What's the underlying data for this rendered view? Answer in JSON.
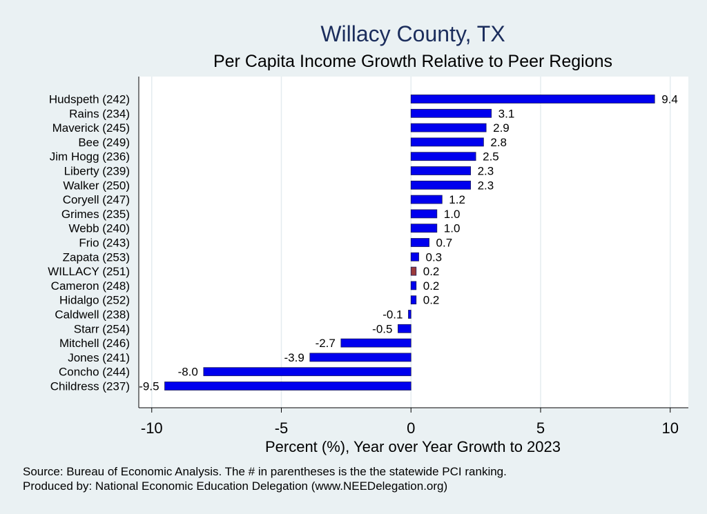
{
  "chart_data": {
    "type": "bar",
    "orientation": "horizontal",
    "title": "Willacy County, TX",
    "subtitle": "Per Capita Income Growth Relative to Peer Regions",
    "xlabel": "Percent (%), Year over Year Growth to 2023",
    "xlim": [
      -10.5,
      10.7
    ],
    "xticks": [
      -10,
      -5,
      0,
      5,
      10
    ],
    "xtick_labels": [
      "-10",
      "-5",
      "0",
      "5",
      "10"
    ],
    "grid": true,
    "categories": [
      "Hudspeth (242)",
      "Rains (234)",
      "Maverick (245)",
      "Bee (249)",
      "Jim Hogg (236)",
      "Liberty (239)",
      "Walker (250)",
      "Coryell (247)",
      "Grimes (235)",
      "Webb (240)",
      "Frio (243)",
      "Zapata (253)",
      "WILLACY (251)",
      "Cameron (248)",
      "Hidalgo (252)",
      "Caldwell (238)",
      "Starr (254)",
      "Mitchell (246)",
      "Jones (241)",
      "Concho (244)",
      "Childress (237)"
    ],
    "values": [
      9.4,
      3.1,
      2.9,
      2.8,
      2.5,
      2.3,
      2.3,
      1.2,
      1.0,
      1.0,
      0.7,
      0.3,
      0.2,
      0.2,
      0.2,
      -0.1,
      -0.5,
      -2.7,
      -3.9,
      -8.0,
      -9.5
    ],
    "value_labels": [
      "9.4",
      "3.1",
      "2.9",
      "2.8",
      "2.5",
      "2.3",
      "2.3",
      "1.2",
      "1.0",
      "1.0",
      "0.7",
      "0.3",
      "0.2",
      "0.2",
      "0.2",
      "-0.1",
      "-0.5",
      "-2.7",
      "-3.9",
      "-8.0",
      "-9.5"
    ],
    "highlight_index": 12,
    "colors": {
      "bar": "#0000ee",
      "highlight": "#9a3a3a",
      "title": "#1b2d5c",
      "background": "#eaf1f3",
      "plot_background": "#ffffff",
      "grid": "#e4ecef"
    }
  },
  "footer": {
    "source": "Source: Bureau of Economic Analysis. The # in parentheses is the the statewide PCI ranking.",
    "producer": "Produced by: National Economic Education Delegation (www.NEEDelegation.org)"
  }
}
